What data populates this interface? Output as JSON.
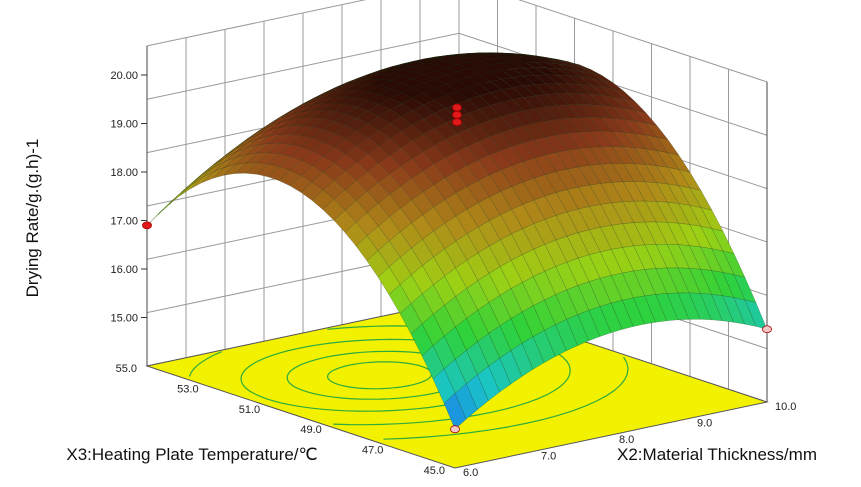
{
  "chart_data": {
    "type": "surface3d",
    "title": "",
    "zlabel": "Drying Rate/g.(g.h)-1",
    "x2label": "X2:Material Thickness/mm",
    "x3label": "X3:Heating Plate Temperature/℃",
    "x2_ticks": [
      "6.0",
      "7.0",
      "8.0",
      "9.0",
      "10.0"
    ],
    "x3_ticks": [
      "45.0",
      "47.0",
      "49.0",
      "51.0",
      "53.0",
      "55.0"
    ],
    "z_ticks": [
      "15.00",
      "16.00",
      "17.00",
      "18.00",
      "19.00",
      "20.00"
    ],
    "x2_range": [
      6.0,
      10.0
    ],
    "x3_range": [
      45.0,
      55.0
    ],
    "z_range": [
      14.0,
      20.0
    ],
    "surface_corners": [
      {
        "x2": 6.0,
        "x3": 55.0,
        "z": 16.9
      },
      {
        "x2": 6.0,
        "x3": 45.0,
        "z": 14.8
      },
      {
        "x2": 10.0,
        "x3": 45.0,
        "z": 15.5
      },
      {
        "x2": 10.0,
        "x3": 55.0,
        "z": 18.0
      }
    ],
    "peak": {
      "x2": 7.6,
      "x3": 51.5,
      "z": 20.0
    },
    "design_points": [
      {
        "x2": 6.0,
        "x3": 55.0,
        "z": 16.9,
        "position": "above"
      },
      {
        "x2": 6.0,
        "x3": 45.0,
        "z": 14.8,
        "position": "below"
      },
      {
        "x2": 10.0,
        "x3": 45.0,
        "z": 15.5,
        "position": "below"
      },
      {
        "x2": 8.0,
        "x3": 50.0,
        "z": 19.4,
        "position": "above"
      },
      {
        "x2": 8.0,
        "x3": 50.0,
        "z": 19.55,
        "position": "above"
      },
      {
        "x2": 8.0,
        "x3": 50.0,
        "z": 19.7,
        "position": "above"
      }
    ],
    "colormap": [
      "#1e5cff",
      "#19c4c8",
      "#2fd23a",
      "#9fd014",
      "#b08a19",
      "#8a3a1a",
      "#2a0a05"
    ],
    "floor_color": "#f2f200",
    "contour_color": "#2faa3c",
    "grid": true
  }
}
